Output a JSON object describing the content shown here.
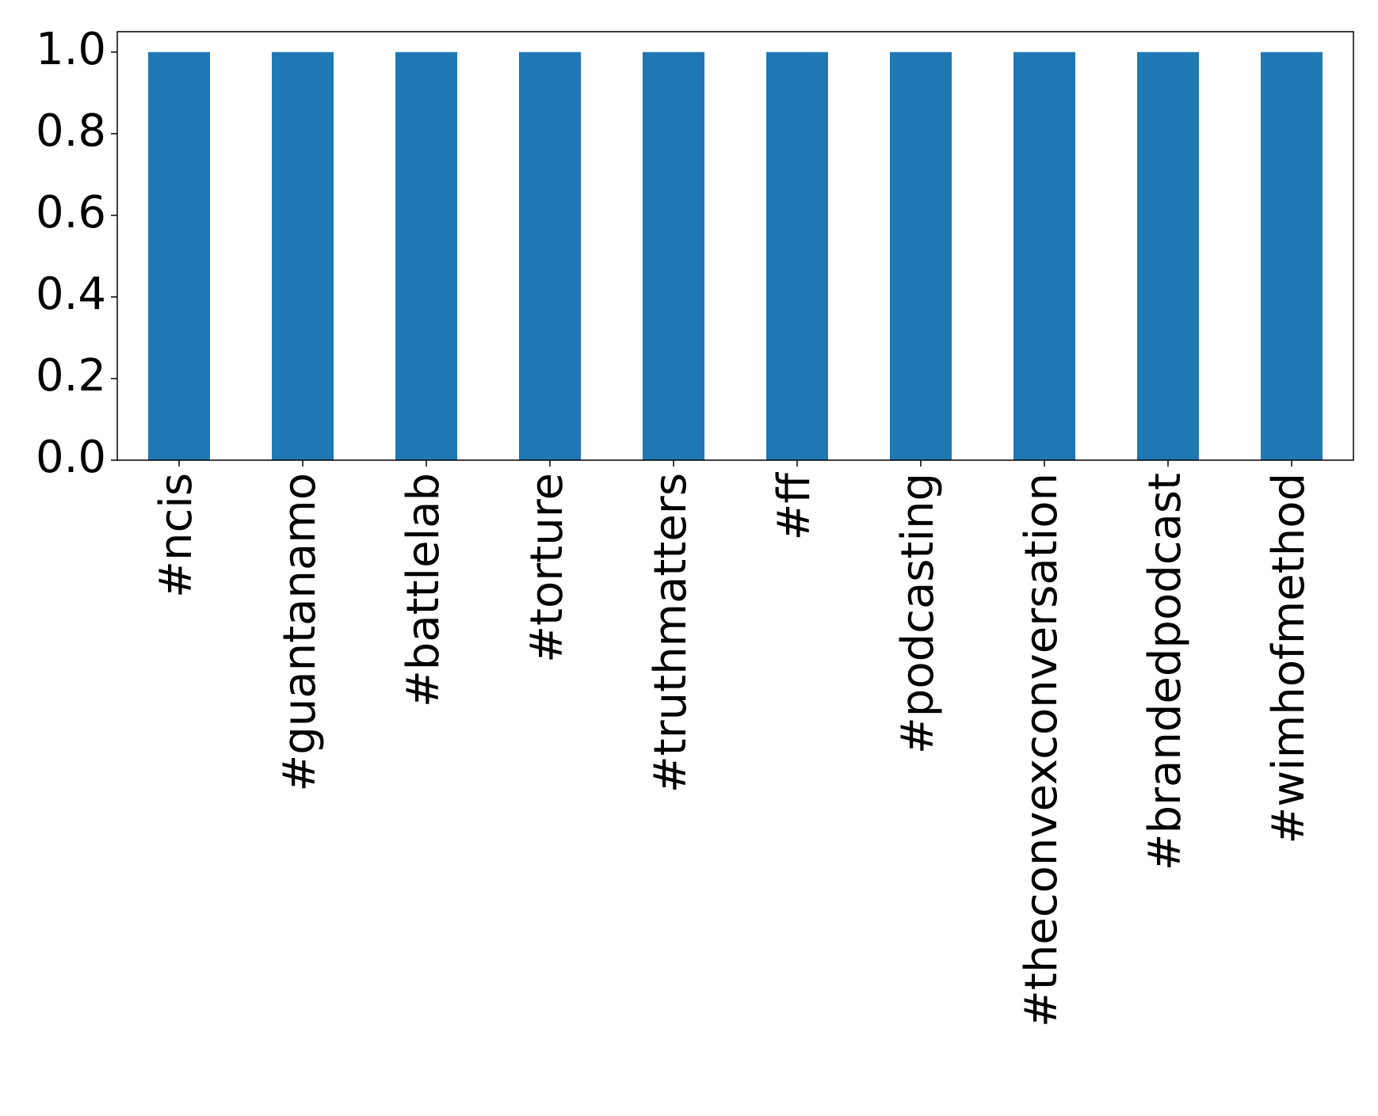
{
  "chart_data": {
    "type": "bar",
    "categories": [
      "#ncis",
      "#guantanamo",
      "#battlelab",
      "#torture",
      "#truthmatters",
      "#ff",
      "#podcasting",
      "#theconvexconversation",
      "#brandedpodcast",
      "#wimhofmethod"
    ],
    "values": [
      1,
      1,
      1,
      1,
      1,
      1,
      1,
      1,
      1,
      1
    ],
    "color": "#1f77b4",
    "ylim": [
      0,
      1.05
    ],
    "yticks": [
      {
        "value": 0,
        "label": "0.0"
      },
      {
        "value": 0.2,
        "label": "0.2"
      },
      {
        "value": 0.4,
        "label": "0.4"
      },
      {
        "value": 0.6,
        "label": "0.6"
      },
      {
        "value": 0.8,
        "label": "0.8"
      },
      {
        "value": 1,
        "label": "1.0"
      }
    ],
    "grid": false
  }
}
